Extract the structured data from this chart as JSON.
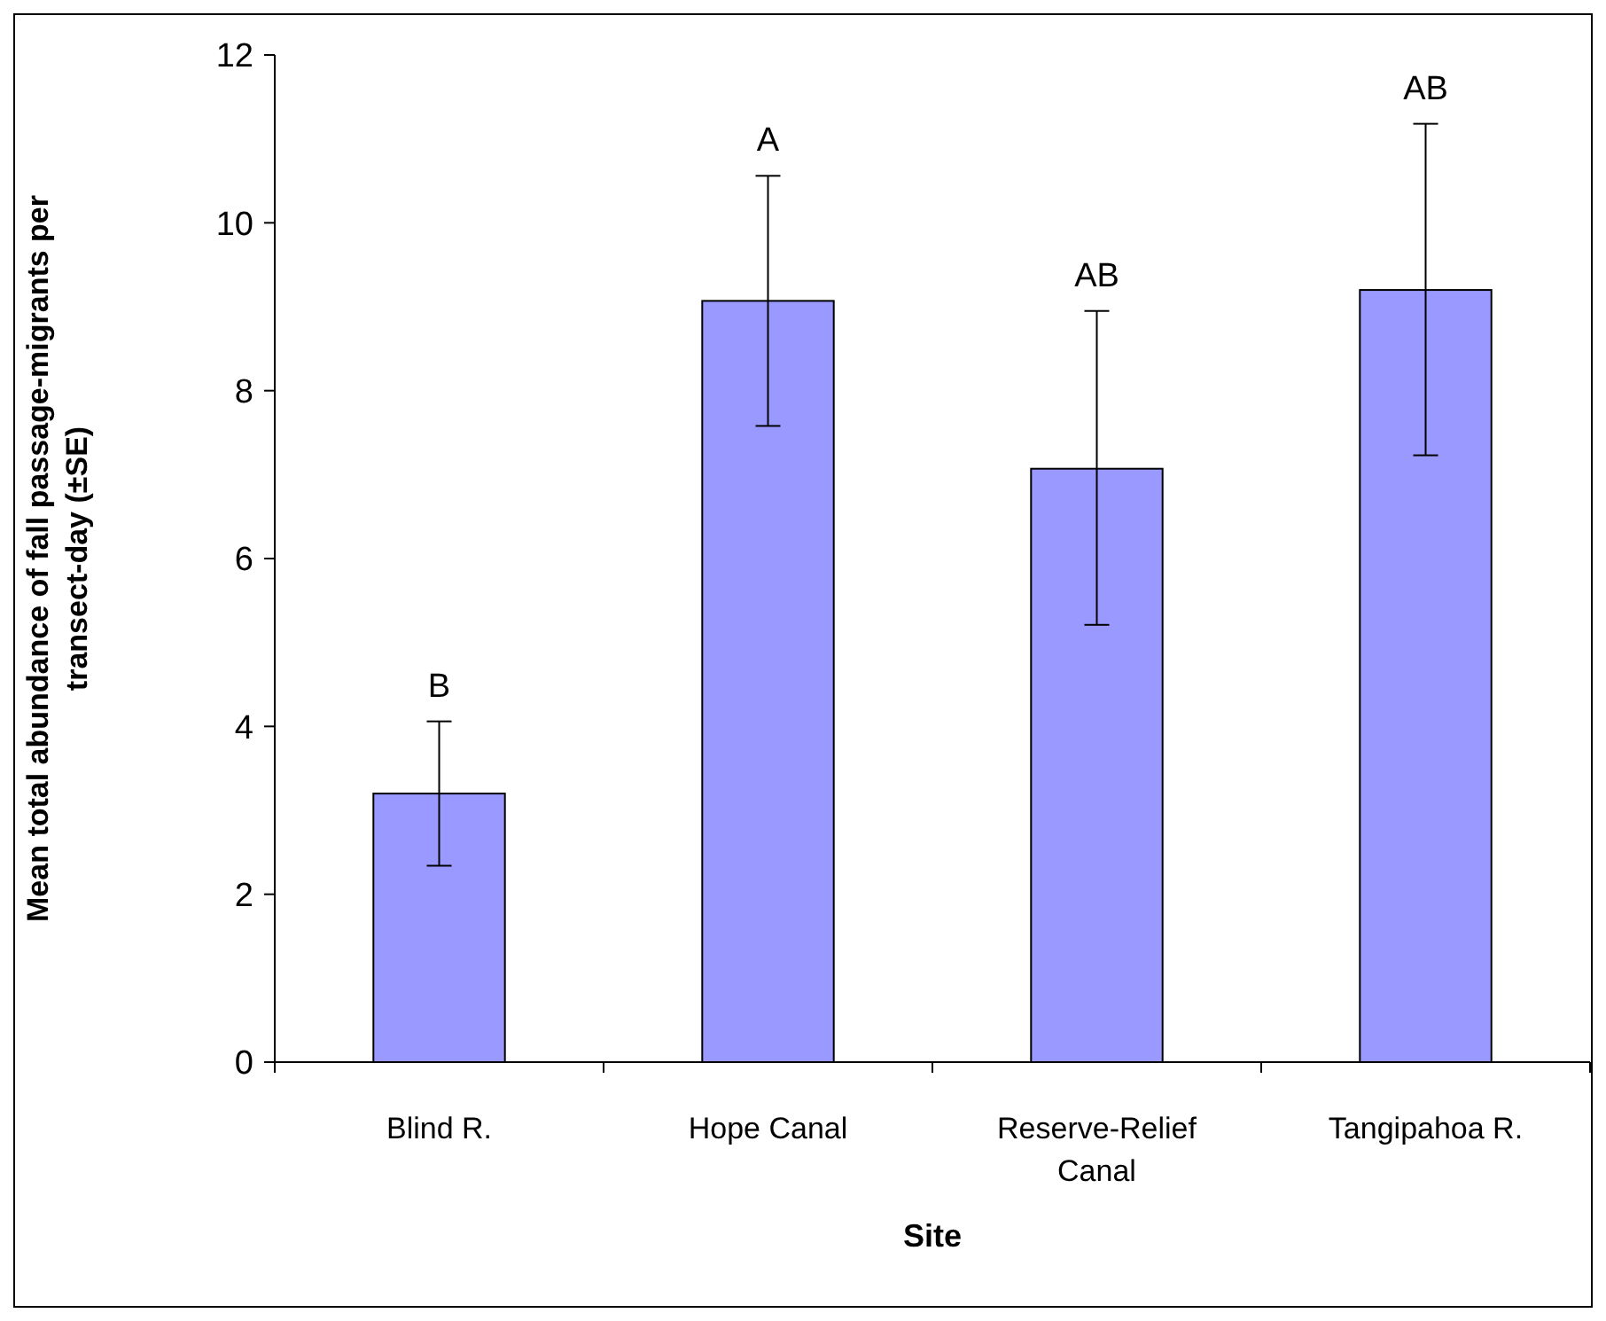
{
  "chart_data": {
    "type": "bar",
    "xlabel": "Site",
    "ylabel": "Mean total abundance of fall passage-migrants per transect-day (±SE)",
    "categories": [
      "Blind R.",
      "Hope Canal",
      "Reserve-Relief Canal",
      "Tangipahoa R."
    ],
    "values": [
      3.2,
      9.07,
      7.07,
      9.2
    ],
    "errors": [
      [
        2.34,
        4.06
      ],
      [
        7.58,
        10.56
      ],
      [
        5.21,
        8.95
      ],
      [
        7.23,
        11.18
      ]
    ],
    "color": "#9999ff",
    "ylim": [
      0,
      12
    ],
    "yticks": [
      0,
      2,
      4,
      6,
      8,
      10,
      12
    ],
    "grid": false,
    "annotations": [
      "B",
      "A",
      "AB",
      "AB"
    ]
  }
}
